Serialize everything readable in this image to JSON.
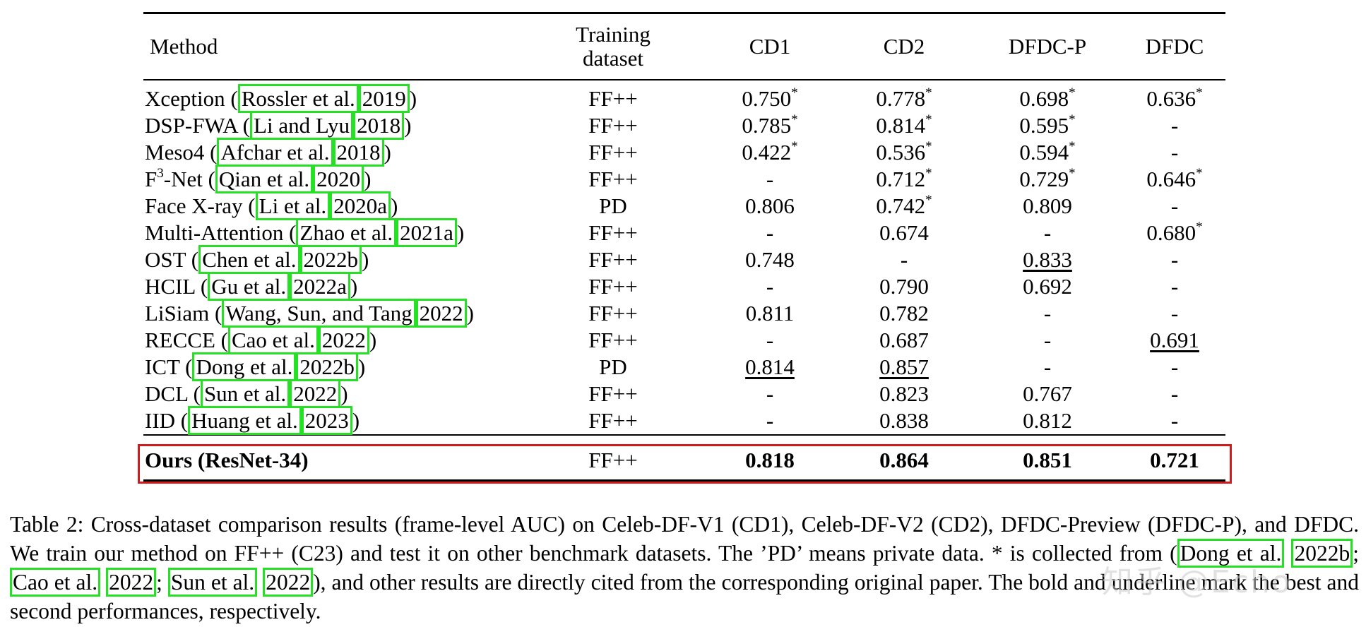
{
  "table": {
    "headers": {
      "method": "Method",
      "training_line1": "Training",
      "training_line2": "dataset",
      "cd1": "CD1",
      "cd2": "CD2",
      "dfdcp": "DFDC-P",
      "dfdc": "DFDC"
    },
    "rows": [
      {
        "pre": "Xception (",
        "auth": "Rossler et al.",
        "year": "2019",
        "post": ")",
        "train": "FF++",
        "cd1": "0.750",
        "cd1_s": "*",
        "cd2": "0.778",
        "cd2_s": "*",
        "dfdcp": "0.698",
        "dfdcp_s": "*",
        "dfdc": "0.636",
        "dfdc_s": "*"
      },
      {
        "pre": "DSP-FWA (",
        "auth": "Li and Lyu",
        "year": "2018",
        "post": ")",
        "train": "FF++",
        "cd1": "0.785",
        "cd1_s": "*",
        "cd2": "0.814",
        "cd2_s": "*",
        "dfdcp": "0.595",
        "dfdcp_s": "*",
        "dfdc": "-",
        "dfdc_s": ""
      },
      {
        "pre": "Meso4 (",
        "auth": "Afchar et al.",
        "year": "2018",
        "post": ")",
        "train": "FF++",
        "cd1": "0.422",
        "cd1_s": "*",
        "cd2": "0.536",
        "cd2_s": "*",
        "dfdcp": "0.594",
        "dfdcp_s": "*",
        "dfdc": "-",
        "dfdc_s": ""
      },
      {
        "pre_a": "F",
        "pre_sup": "3",
        "pre_b": "-Net (",
        "auth": "Qian et al.",
        "year": "2020",
        "post": ")",
        "train": "FF++",
        "cd1": "-",
        "cd1_s": "",
        "cd2": "0.712",
        "cd2_s": "*",
        "dfdcp": "0.729",
        "dfdcp_s": "*",
        "dfdc": "0.646",
        "dfdc_s": "*"
      },
      {
        "pre": "Face X-ray (",
        "auth": "Li et al.",
        "year": "2020a",
        "post": ")",
        "train": "PD",
        "cd1": "0.806",
        "cd1_s": "",
        "cd2": "0.742",
        "cd2_s": "*",
        "dfdcp": "0.809",
        "dfdcp_s": "",
        "dfdc": "-",
        "dfdc_s": ""
      },
      {
        "pre": "Multi-Attention (",
        "auth": "Zhao et al.",
        "year": "2021a",
        "post": ")",
        "train": "FF++",
        "cd1": "-",
        "cd1_s": "",
        "cd2": "0.674",
        "cd2_s": "",
        "dfdcp": "-",
        "dfdcp_s": "",
        "dfdc": "0.680",
        "dfdc_s": "*"
      },
      {
        "pre": "OST (",
        "auth": "Chen et al.",
        "year": "2022b",
        "post": ")",
        "train": "FF++",
        "cd1": "0.748",
        "cd1_s": "",
        "cd2": "-",
        "cd2_s": "",
        "dfdcp": "0.833",
        "dfdcp_s": "",
        "dfdc": "-",
        "dfdc_s": ""
      },
      {
        "pre": "HCIL (",
        "auth": "Gu et al.",
        "year": "2022a",
        "post": ")",
        "train": "FF++",
        "cd1": "-",
        "cd1_s": "",
        "cd2": "0.790",
        "cd2_s": "",
        "dfdcp": "0.692",
        "dfdcp_s": "",
        "dfdc": "-",
        "dfdc_s": ""
      },
      {
        "pre": "LiSiam (",
        "auth": "Wang, Sun, and Tang",
        "year": "2022",
        "post": ")",
        "train": "FF++",
        "cd1": "0.811",
        "cd1_s": "",
        "cd2": "0.782",
        "cd2_s": "",
        "dfdcp": "-",
        "dfdcp_s": "",
        "dfdc": "-",
        "dfdc_s": ""
      },
      {
        "pre": "RECCE (",
        "auth": "Cao et al.",
        "year": "2022",
        "post": ")",
        "train": "FF++",
        "cd1": "-",
        "cd1_s": "",
        "cd2": "0.687",
        "cd2_s": "",
        "dfdcp": "-",
        "dfdcp_s": "",
        "dfdc": "0.691",
        "dfdc_s": ""
      },
      {
        "pre": "ICT (",
        "auth": "Dong et al.",
        "year": "2022b",
        "post": ")",
        "train": "PD",
        "cd1": "0.814",
        "cd1_s": "",
        "cd2": "0.857",
        "cd2_s": "",
        "dfdcp": "-",
        "dfdcp_s": "",
        "dfdc": "-",
        "dfdc_s": ""
      },
      {
        "pre": "DCL (",
        "auth": "Sun et al.",
        "year": "2022",
        "post": ")",
        "train": "FF++",
        "cd1": "-",
        "cd1_s": "",
        "cd2": "0.823",
        "cd2_s": "",
        "dfdcp": "0.767",
        "dfdcp_s": "",
        "dfdc": "-",
        "dfdc_s": ""
      },
      {
        "pre": "IID (",
        "auth": "Huang et al.",
        "year": "2023",
        "post": ")",
        "train": "FF++",
        "cd1": "-",
        "cd1_s": "",
        "cd2": "0.838",
        "cd2_s": "",
        "dfdcp": "0.812",
        "dfdcp_s": "",
        "dfdc": "-",
        "dfdc_s": ""
      }
    ],
    "ours": {
      "method": "Ours (ResNet-34)",
      "train": "FF++",
      "cd1": "0.818",
      "cd2": "0.864",
      "dfdcp": "0.851",
      "dfdc": "0.721"
    }
  },
  "caption": {
    "part1": "Table 2: Cross-dataset comparison results (frame-level AUC) on Celeb-DF-V1 (CD1), Celeb-DF-V2 (CD2), DFDC-Preview (DFDC-P), and DFDC. We train our method on FF++ (C23) and test it on other benchmark datasets. The ’PD’ means private data. * is collected from (",
    "c1_auth": "Dong et al.",
    "c1_year": "2022b",
    "sep1": "; ",
    "c2_auth": "Cao et al.",
    "c2_year": "2022",
    "sep2": "; ",
    "c3_auth": "Sun et al.",
    "c3_year": "2022",
    "part2": "), and other results are directly cited from the corresponding original paper. The bold and underline mark the best and second performances, respectively."
  },
  "watermark": "知乎 @Echo"
}
